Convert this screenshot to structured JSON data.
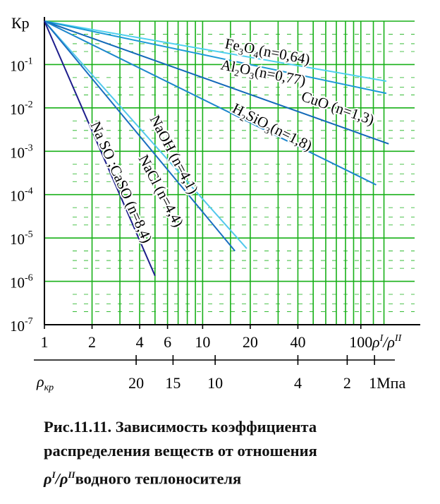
{
  "chart_data": {
    "type": "line",
    "title": "",
    "x_scale": "log",
    "y_scale": "log",
    "xlim": [
      1,
      150
    ],
    "ylim": [
      1e-07,
      1
    ],
    "grid": true,
    "ylabel": "Кр",
    "xlabel": "ρI/ρII",
    "x_ticks": [
      "1",
      "2",
      "4",
      "6",
      "10",
      "20",
      "40",
      "100"
    ],
    "x_tick_values": [
      1,
      2,
      4,
      6,
      10,
      20,
      40,
      100
    ],
    "y_ticks": [
      {
        "value": 0.1,
        "base": "10",
        "exp": "-1"
      },
      {
        "value": 0.01,
        "base": "10",
        "exp": "-2"
      },
      {
        "value": 0.001,
        "base": "10",
        "exp": "-3"
      },
      {
        "value": 0.0001,
        "base": "10",
        "exp": "-4"
      },
      {
        "value": 1e-05,
        "base": "10",
        "exp": "-5"
      },
      {
        "value": 1e-06,
        "base": "10",
        "exp": "-6"
      },
      {
        "value": 1e-07,
        "base": "10",
        "exp": "-7"
      }
    ],
    "secondary_x_axis": {
      "label": "ρкр",
      "unit_label": "1Мпа",
      "ticks": [
        {
          "label": "20",
          "at_ratio": 3.8
        },
        {
          "label": "15",
          "at_ratio": 6.5
        },
        {
          "label": "10",
          "at_ratio": 12
        },
        {
          "label": "4",
          "at_ratio": 40
        },
        {
          "label": "2",
          "at_ratio": 82
        }
      ]
    },
    "series": [
      {
        "name": "Fe3O4(n=0,64)",
        "n": 0.64,
        "x_end": 145,
        "color": "#4fd0ee"
      },
      {
        "name": "Al2O3(n=0,77)",
        "n": 0.77,
        "x_end": 145,
        "color": "#1c9ad6"
      },
      {
        "name": "CuO (n=1,3)",
        "n": 1.3,
        "x_end": 150,
        "color": "#1268b8"
      },
      {
        "name": "H2SiO3(n=1,8)",
        "n": 1.8,
        "x_end": 125,
        "color": "#1c86cc"
      },
      {
        "name": "NaOH (n=4,1)",
        "n": 4.1,
        "x_end": 19,
        "color": "#52c8ec"
      },
      {
        "name": "NaCl (n=4,4)",
        "n": 4.4,
        "x_end": 16,
        "color": "#1a6ec0"
      },
      {
        "name": "Na SO ;CaSO (n=8,4)",
        "n": 8.4,
        "x_end": 5,
        "color": "#1d1d8c"
      }
    ]
  },
  "caption": {
    "line1": "Рис.11.11. Зависимость коэффициента",
    "line2": "распределения веществ от отношения",
    "line3_rho1": "ρ",
    "line3_sup1": "I",
    "line3_slash": "/ρ",
    "line3_sup2": "II",
    "line3_rest": "водного теплоносителя"
  },
  "colors": {
    "grid": "#18b018",
    "axis": "#000000",
    "caption": "#111111"
  }
}
